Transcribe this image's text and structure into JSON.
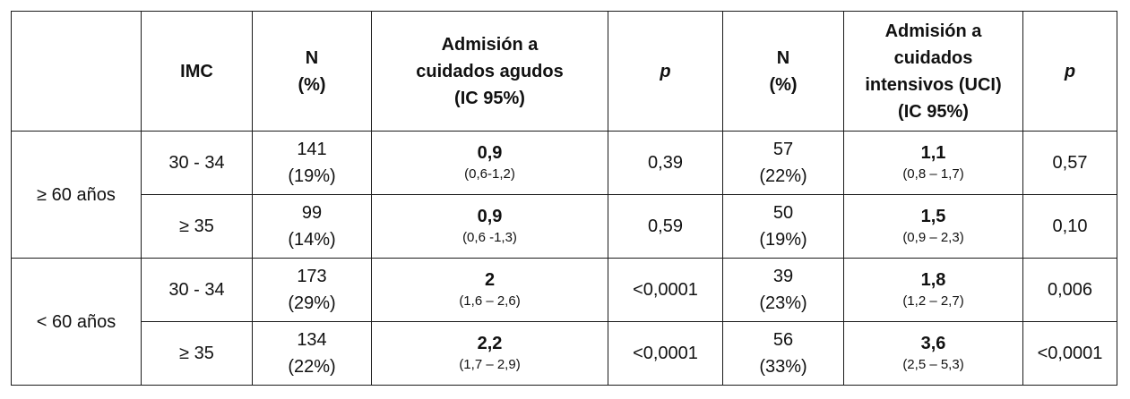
{
  "header": {
    "blank": "",
    "imc": "IMC",
    "n1": [
      "N",
      "(%)"
    ],
    "acute": [
      "Admisión a",
      "cuidados agudos",
      "(IC 95%)"
    ],
    "p1": "p",
    "n2": [
      "N",
      "(%)"
    ],
    "icu": [
      "Admisión a",
      "cuidados",
      "intensivos (UCI)",
      "(IC 95%)"
    ],
    "p2": "p"
  },
  "groups": [
    {
      "label": "≥ 60 años",
      "rows": [
        {
          "imc": "30 - 34",
          "n1": [
            "141",
            "(19%)"
          ],
          "acute_val": "0,9",
          "acute_ci": "(0,6-1,2)",
          "p1": "0,39",
          "n2": [
            "57",
            "(22%)"
          ],
          "icu_val": "1,1",
          "icu_ci": "(0,8 – 1,7)",
          "p2": "0,57"
        },
        {
          "imc": "≥ 35",
          "n1": [
            "99",
            "(14%)"
          ],
          "acute_val": "0,9",
          "acute_ci": "(0,6 -1,3)",
          "p1": "0,59",
          "n2": [
            "50",
            "(19%)"
          ],
          "icu_val": "1,5",
          "icu_ci": "(0,9 – 2,3)",
          "p2": "0,10"
        }
      ]
    },
    {
      "label": "< 60 años",
      "rows": [
        {
          "imc": "30 - 34",
          "n1": [
            "173",
            "(29%)"
          ],
          "acute_val": "2",
          "acute_ci": "(1,6 – 2,6)",
          "p1": "<0,0001",
          "n2": [
            "39",
            "(23%)"
          ],
          "icu_val": "1,8",
          "icu_ci": "(1,2 – 2,7)",
          "p2": "0,006"
        },
        {
          "imc": "≥ 35",
          "n1": [
            "134",
            "(22%)"
          ],
          "acute_val": "2,2",
          "acute_ci": "(1,7 – 2,9)",
          "p1": "<0,0001",
          "n2": [
            "56",
            "(33%)"
          ],
          "icu_val": "3,6",
          "icu_ci": "(2,5 – 5,3)",
          "p2": "<0,0001"
        }
      ]
    }
  ]
}
